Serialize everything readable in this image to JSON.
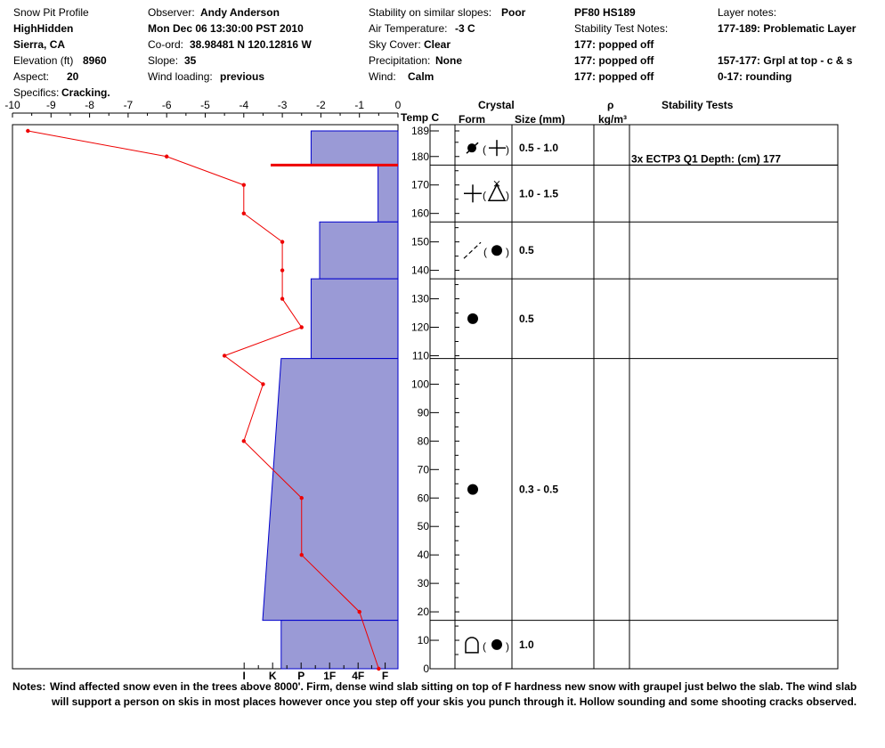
{
  "header": {
    "title": "Snow Pit Profile",
    "name": "HighHidden",
    "location": "Sierra, CA",
    "elevation_label": "Elevation (ft)",
    "elevation": "8960",
    "aspect_label": "Aspect:",
    "aspect": "20",
    "specifics_label": "Specifics:",
    "specifics": "Cracking.",
    "observer_label": "Observer:",
    "observer": "Andy Anderson",
    "datetime": "Mon Dec 06 13:30:00 PST 2010",
    "coord_label": "Co-ord:",
    "coord": "38.98481 N 120.12816 W",
    "slope_label": "Slope:",
    "slope": "35",
    "wind_loading_label": "Wind loading:",
    "wind_loading": "previous",
    "stability_label": "Stability on similar slopes:",
    "stability": "Poor",
    "air_temp_label": "Air Temperature:",
    "air_temp": "-3 C",
    "sky_label": "Sky Cover:",
    "sky": "Clear",
    "precip_label": "Precipitation:",
    "precip": "None",
    "wind_label": "Wind:",
    "wind": "Calm",
    "pf_hs": "PF80 HS189",
    "stab_notes_label": "Stability Test Notes:",
    "stab_notes": [
      "177: popped off",
      "177: popped off",
      "177: popped off"
    ],
    "layer_notes_label": "Layer notes:",
    "layer_notes": [
      "177-189: Problematic Layer",
      "",
      "157-177: Grpl at top - c & s",
      "0-17: rounding"
    ]
  },
  "columns": {
    "temp": "Temp C",
    "crystal": "Crystal",
    "form": "Form",
    "size": "Size (mm)",
    "rho": "ρ",
    "rho_unit": "kg/m³",
    "stability_tests": "Stability Tests"
  },
  "layers": [
    {
      "top": 189,
      "bottom": 177,
      "size": "0.5 - 1.0",
      "form": "rounding-faceted-mixed"
    },
    {
      "top": 177,
      "bottom": 157,
      "size": "1.0 - 1.5",
      "form": "graupel-mixed"
    },
    {
      "top": 157,
      "bottom": 137,
      "size": "0.5",
      "form": "decomposing-mixed"
    },
    {
      "top": 137,
      "bottom": 109,
      "size": "0.5",
      "form": "rounded-grains"
    },
    {
      "top": 109,
      "bottom": 17,
      "size": "0.3 - 0.5",
      "form": "rounded-grains"
    },
    {
      "top": 17,
      "bottom": 0,
      "size": "1.0",
      "form": "depth-hoar-rounding"
    }
  ],
  "stability_test": {
    "text": "3x ECTP3 Q1 Depth: (cm) 177",
    "depth": 177
  },
  "notes_label": "Notes:",
  "notes": [
    "Wind affected snow even in the trees above 8000'. Firm, dense wind slab sitting on top of F hardness new snow with graupel just belwo the slab. The wind slab",
    "will support a person on skis in most places however once you step off your skis you punch through it. Hollow sounding and some shooting cracks observed."
  ],
  "chart_data": {
    "type": "line",
    "title": "",
    "xlabel": "",
    "ylabel": "",
    "temp_axis": {
      "min": -10,
      "max": 0,
      "ticks": [
        "-10",
        "-9",
        "-8",
        "-7",
        "-6",
        "-5",
        "-4",
        "-3",
        "-2",
        "-1",
        "0"
      ]
    },
    "depth_axis": {
      "min": 0,
      "max": 189,
      "ticks": [
        "189",
        "180",
        "170",
        "160",
        "150",
        "140",
        "130",
        "120",
        "110",
        "100",
        "90",
        "80",
        "70",
        "60",
        "50",
        "40",
        "30",
        "20",
        "10",
        "0"
      ]
    },
    "hardness_axis": {
      "labels": [
        "I",
        "K",
        "P",
        "1F",
        "4F",
        "F"
      ],
      "positions": [
        5.4,
        4.4,
        3.4,
        2.4,
        1.4,
        0.45
      ]
    },
    "hardness_profile": [
      {
        "top": 189,
        "bottom": 177,
        "hardness_top": 3.05,
        "hardness_bottom": 3.05
      },
      {
        "top": 177,
        "bottom": 157,
        "hardness_top": 0.7,
        "hardness_bottom": 0.7
      },
      {
        "top": 157,
        "bottom": 137,
        "hardness_top": 2.75,
        "hardness_bottom": 2.75
      },
      {
        "top": 137,
        "bottom": 109,
        "hardness_top": 3.05,
        "hardness_bottom": 3.05
      },
      {
        "top": 109,
        "bottom": 17,
        "hardness_top": 4.1,
        "hardness_bottom": 4.75
      },
      {
        "top": 17,
        "bottom": 0,
        "hardness_top": 4.1,
        "hardness_bottom": 4.1
      }
    ],
    "series": [
      {
        "values": [
          {
            "depth": 189,
            "temp": -9.6
          },
          {
            "depth": 180,
            "temp": -6
          },
          {
            "depth": 170,
            "temp": -4
          },
          {
            "depth": 160,
            "temp": -4
          },
          {
            "depth": 150,
            "temp": -3
          },
          {
            "depth": 140,
            "temp": -3
          },
          {
            "depth": 130,
            "temp": -3
          },
          {
            "depth": 120,
            "temp": -2.5
          },
          {
            "depth": 110,
            "temp": -4.5
          },
          {
            "depth": 100,
            "temp": -3.5
          },
          {
            "depth": 80,
            "temp": -4
          },
          {
            "depth": 60,
            "temp": -2.5
          },
          {
            "depth": 40,
            "temp": -2.5
          },
          {
            "depth": 20,
            "temp": -1
          },
          {
            "depth": 0,
            "temp": -0.5
          }
        ]
      }
    ],
    "colors": {
      "fill": "#9a9ad6",
      "border": "#0000cc",
      "line": "#ee0000",
      "axis": "#000000"
    }
  }
}
